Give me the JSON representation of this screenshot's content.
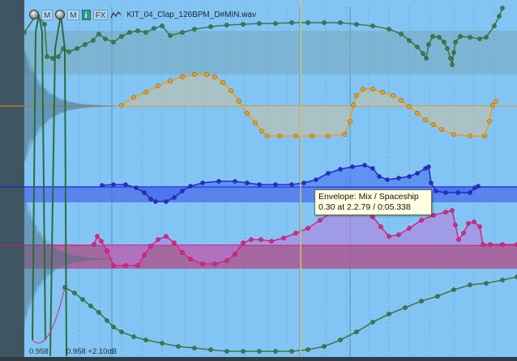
{
  "item": {
    "name": "KIT_04_Clap_126BPM_D#MIN.wav",
    "buttons": {
      "mute": "M",
      "info": "i",
      "fx": "FX"
    },
    "volume_left": "0.958",
    "volume_right": "0.958 +2.10dB"
  },
  "tooltip": {
    "line1": "Envelope: Mix / Spaceship",
    "line2": "0.30 at 2.2.79 / 0:05.338"
  },
  "colors": {
    "lane_bg": "#82c5f4",
    "rail": "#3f5662",
    "env_green": "#3d7a48",
    "env_orange": "#f39c12",
    "env_blue": "#2a2ad0",
    "env_magenta": "#ea1d86",
    "playhead": "#d0c070",
    "waveform": "#4e6e80"
  },
  "icons": [
    "knob-icon",
    "envelope-icon"
  ]
}
